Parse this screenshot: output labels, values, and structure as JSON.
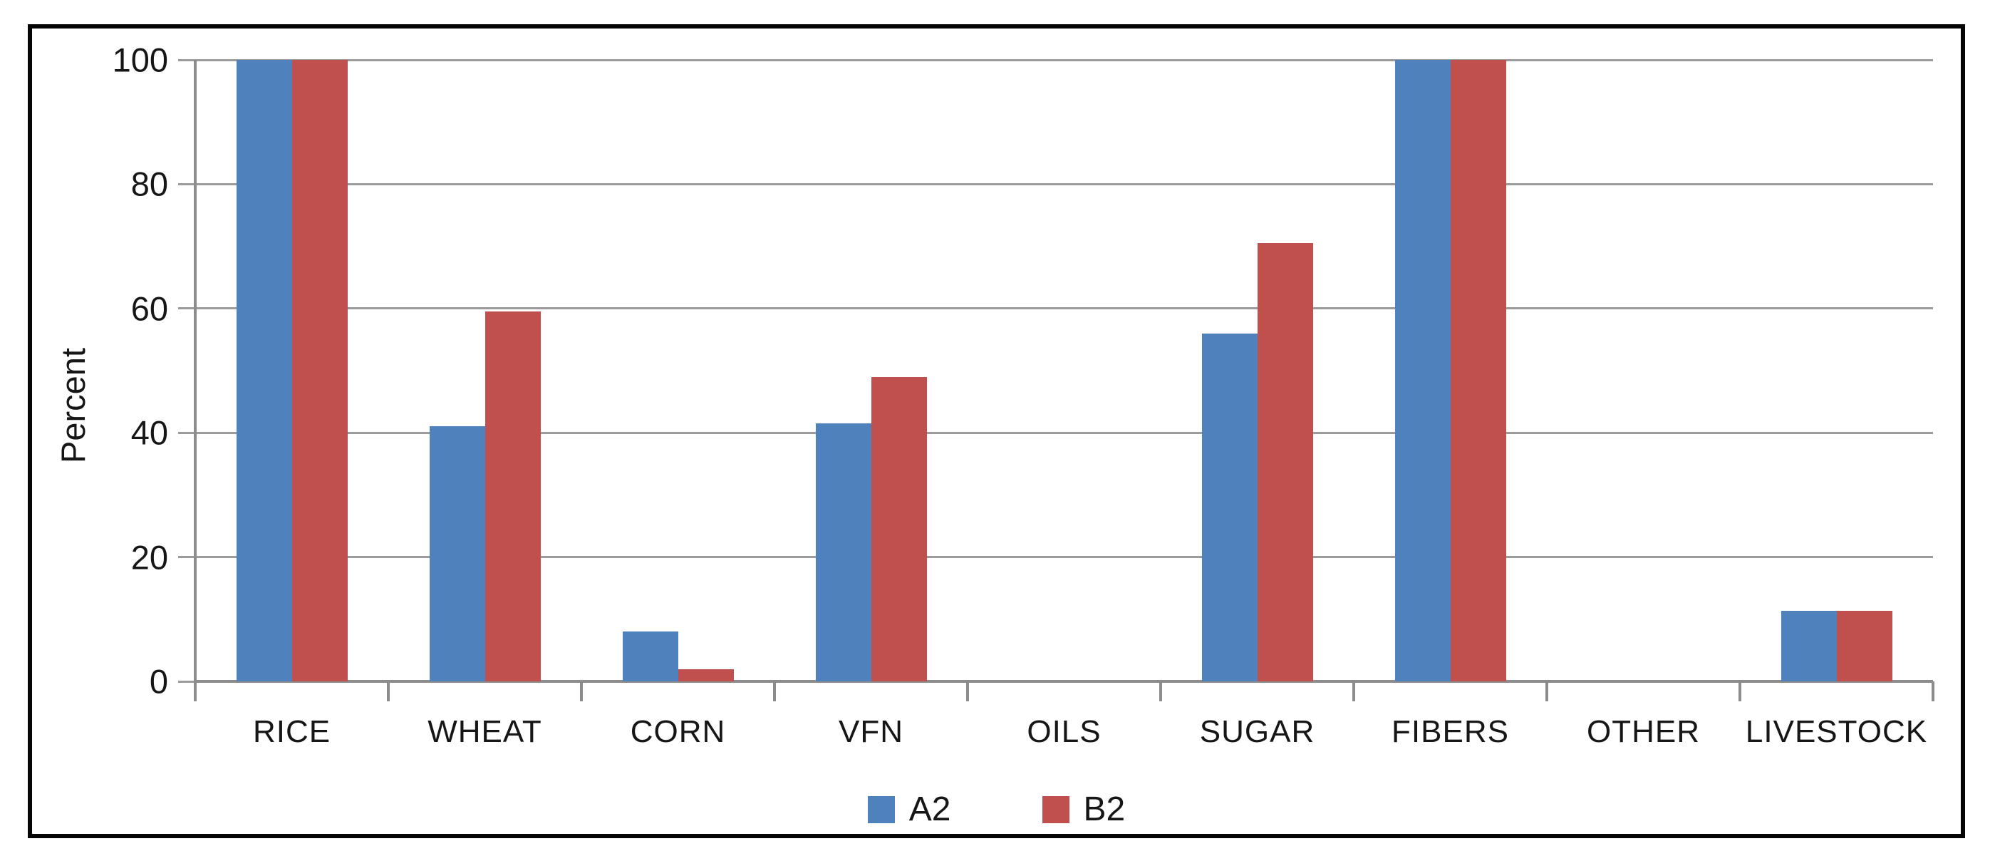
{
  "chart_data": {
    "type": "bar",
    "title": "",
    "xlabel": "",
    "ylabel": "Percent",
    "categories": [
      "RICE",
      "WHEAT",
      "CORN",
      "VFN",
      "OILS",
      "SUGAR",
      "FIBERS",
      "OTHER",
      "LIVESTOCK"
    ],
    "series": [
      {
        "name": "A2",
        "color": "#4F81BD",
        "values": [
          100,
          41,
          8,
          41.5,
          0,
          56,
          100,
          0,
          11.3
        ]
      },
      {
        "name": "B2",
        "color": "#C0504D",
        "values": [
          100,
          59.5,
          2,
          49,
          0,
          70.5,
          100,
          0,
          11.3
        ]
      }
    ],
    "ylim": [
      0,
      100
    ],
    "yticks": [
      0,
      20,
      40,
      60,
      80,
      100
    ],
    "grid": true,
    "legend_position": "bottom"
  },
  "colors": {
    "gridline": "#9b9b9b",
    "axis": "#8c8c8c",
    "frame_border": "#060606",
    "text": "#161616"
  }
}
